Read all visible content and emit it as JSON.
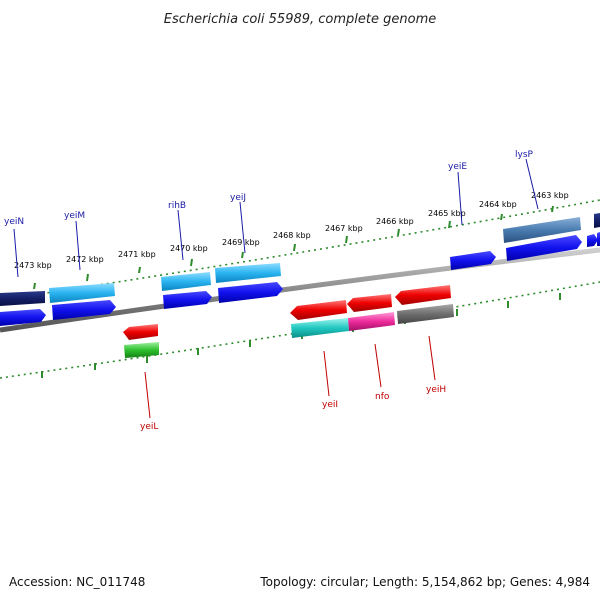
{
  "header": {
    "title": "Escherichia coli 55989, complete genome"
  },
  "footer": {
    "accession": "Accession: NC_011748",
    "summary": "Topology: circular; Length: 5,154,862 bp; Genes: 4,984"
  },
  "scale": {
    "ticks": [
      "2473 kbp",
      "2472 kbp",
      "2471 kbp",
      "2470 kbp",
      "2469 kbp",
      "2468 kbp",
      "2467 kbp",
      "2466 kbp",
      "2465 kbp",
      "2464 kbp",
      "2463 kbp"
    ]
  },
  "genes": {
    "forward_labels": [
      "yeiN",
      "yeiM",
      "rihB",
      "yeiJ",
      "yeiE",
      "lysP"
    ],
    "reverse_labels": [
      "yeiL",
      "yeiI",
      "nfo",
      "yeiH"
    ]
  },
  "colors": {
    "forward_label": "#1a1aa6",
    "reverse_label": "#c00000",
    "backbone": "#8a8a8a",
    "dotted_ring": "#2e8b2e"
  }
}
